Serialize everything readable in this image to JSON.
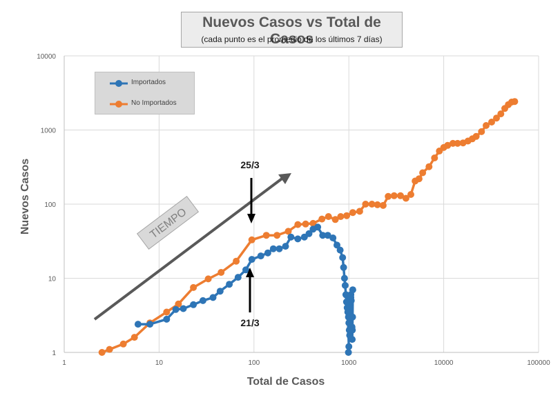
{
  "chart_data": {
    "type": "line",
    "title": "Nuevos Casos vs Total de Casos",
    "subtitle": "(cada punto es el promedio de los últimos 7 días)",
    "xlabel": "Total de Casos",
    "ylabel": "Nuevos Casos",
    "x_scale": "log",
    "y_scale": "log",
    "xlim": [
      1,
      100000
    ],
    "ylim": [
      1,
      10000
    ],
    "x_ticks": [
      "1",
      "10",
      "100",
      "1000",
      "10000",
      "100000"
    ],
    "y_ticks": [
      "1",
      "10",
      "100",
      "1000",
      "10000"
    ],
    "grid": true,
    "legend_position": "top-left",
    "series": [
      {
        "name": "Importados",
        "color": "#2e75b6",
        "points": [
          [
            6,
            2.4
          ],
          [
            8,
            2.4
          ],
          [
            12,
            2.8
          ],
          [
            15,
            3.8
          ],
          [
            18,
            3.9
          ],
          [
            23,
            4.4
          ],
          [
            29,
            5
          ],
          [
            37,
            5.5
          ],
          [
            44,
            6.7
          ],
          [
            55,
            8.3
          ],
          [
            68,
            10.3
          ],
          [
            82,
            13
          ],
          [
            95,
            18
          ],
          [
            118,
            20
          ],
          [
            140,
            22
          ],
          [
            160,
            25
          ],
          [
            185,
            25
          ],
          [
            215,
            27
          ],
          [
            245,
            36
          ],
          [
            290,
            34
          ],
          [
            340,
            36
          ],
          [
            380,
            40
          ],
          [
            420,
            46
          ],
          [
            470,
            49
          ],
          [
            530,
            38
          ],
          [
            600,
            38
          ],
          [
            680,
            35
          ],
          [
            750,
            28
          ],
          [
            810,
            24
          ],
          [
            860,
            19
          ],
          [
            880,
            14
          ],
          [
            900,
            10
          ],
          [
            915,
            8
          ],
          [
            930,
            6
          ],
          [
            945,
            4.8
          ],
          [
            960,
            4
          ],
          [
            975,
            3.5
          ],
          [
            990,
            3
          ],
          [
            1000,
            2.5
          ],
          [
            1010,
            2
          ],
          [
            1020,
            1.7
          ],
          [
            1030,
            3
          ],
          [
            1040,
            4.5
          ],
          [
            1050,
            6
          ],
          [
            1060,
            5
          ],
          [
            1070,
            3
          ],
          [
            1080,
            2.2
          ],
          [
            1085,
            1.5
          ],
          [
            1090,
            2
          ],
          [
            1095,
            3
          ],
          [
            1100,
            7
          ],
          [
            1050,
            5.5
          ],
          [
            990,
            4.4
          ],
          [
            960,
            4.8
          ],
          [
            960,
            5.8
          ],
          [
            1000,
            1.2
          ],
          [
            990,
            1
          ]
        ]
      },
      {
        "name": "No Importados",
        "color": "#ed7d31",
        "points": [
          [
            2.5,
            1
          ],
          [
            3,
            1.1
          ],
          [
            4.2,
            1.3
          ],
          [
            5.5,
            1.6
          ],
          [
            8,
            2.5
          ],
          [
            12,
            3.5
          ],
          [
            16,
            4.5
          ],
          [
            23,
            7.5
          ],
          [
            33,
            9.8
          ],
          [
            45,
            12
          ],
          [
            65,
            17
          ],
          [
            95,
            33
          ],
          [
            135,
            38
          ],
          [
            175,
            38
          ],
          [
            230,
            43
          ],
          [
            290,
            53
          ],
          [
            350,
            54
          ],
          [
            420,
            55
          ],
          [
            520,
            63
          ],
          [
            610,
            68
          ],
          [
            720,
            62
          ],
          [
            820,
            68
          ],
          [
            950,
            70
          ],
          [
            1100,
            77
          ],
          [
            1300,
            80
          ],
          [
            1500,
            100
          ],
          [
            1750,
            100
          ],
          [
            2000,
            98
          ],
          [
            2300,
            96
          ],
          [
            2600,
            127
          ],
          [
            3000,
            130
          ],
          [
            3500,
            130
          ],
          [
            4000,
            120
          ],
          [
            4500,
            135
          ],
          [
            5000,
            205
          ],
          [
            5500,
            220
          ],
          [
            6000,
            265
          ],
          [
            7000,
            320
          ],
          [
            8000,
            420
          ],
          [
            9000,
            520
          ],
          [
            10000,
            580
          ],
          [
            11000,
            620
          ],
          [
            12500,
            660
          ],
          [
            14000,
            660
          ],
          [
            16000,
            670
          ],
          [
            18000,
            710
          ],
          [
            20000,
            760
          ],
          [
            22000,
            820
          ],
          [
            25000,
            950
          ],
          [
            28000,
            1150
          ],
          [
            32000,
            1280
          ],
          [
            36000,
            1450
          ],
          [
            40000,
            1650
          ],
          [
            44000,
            1950
          ],
          [
            48000,
            2200
          ],
          [
            52000,
            2380
          ],
          [
            56000,
            2420
          ]
        ]
      }
    ],
    "annotations": {
      "tiempo_label": "TIEMPO",
      "arrow_down_label": "25/3",
      "arrow_up_label": "21/3"
    }
  }
}
